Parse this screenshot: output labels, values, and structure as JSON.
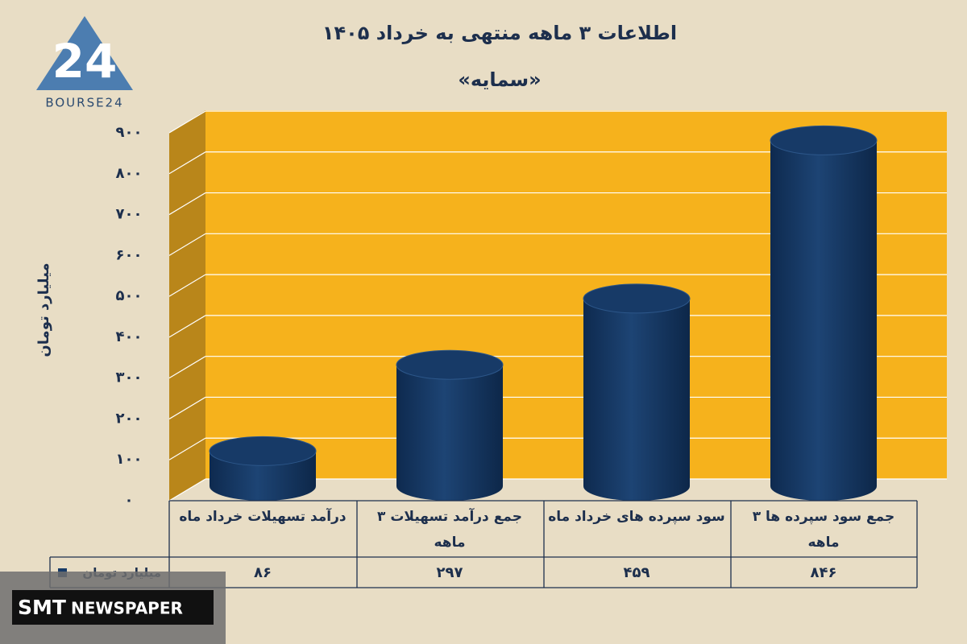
{
  "chart_data": {
    "type": "cylinder-bar",
    "title": "اطلاعات ۳ ماهه منتهی به خرداد ۱۴۰۵",
    "subtitle": "«سمایه»",
    "y_label": "میلیارد تومان",
    "categories": [
      "درآمد تسهیلات خرداد  ماه",
      "جمع درآمد تسهیلات ۳ ماهه",
      "سود سپرده های خرداد ماه",
      "جمع سود سپرده ها ۳ ماهه"
    ],
    "series": [
      {
        "name": "میلیارد تومان",
        "color": "#173a67",
        "values": [
          86,
          297,
          459,
          846
        ],
        "value_labels": [
          "۸۶",
          "۲۹۷",
          "۴۵۹",
          "۸۴۶"
        ]
      }
    ],
    "ylim": [
      0,
      900
    ],
    "yticks": [
      {
        "value": 0,
        "label": "۰"
      },
      {
        "value": 100,
        "label": "۱۰۰"
      },
      {
        "value": 200,
        "label": "۲۰۰"
      },
      {
        "value": 300,
        "label": "۳۰۰"
      },
      {
        "value": 400,
        "label": "۴۰۰"
      },
      {
        "value": 500,
        "label": "۵۰۰"
      },
      {
        "value": 600,
        "label": "۶۰۰"
      },
      {
        "value": 700,
        "label": "۷۰۰"
      },
      {
        "value": 800,
        "label": "۸۰۰"
      },
      {
        "value": 900,
        "label": "۹۰۰"
      }
    ],
    "grid": true
  },
  "logo": {
    "text": "BOURSE24",
    "mark": "24"
  },
  "watermark": {
    "brand": "SMT",
    "text": "NEWSPAPER"
  }
}
